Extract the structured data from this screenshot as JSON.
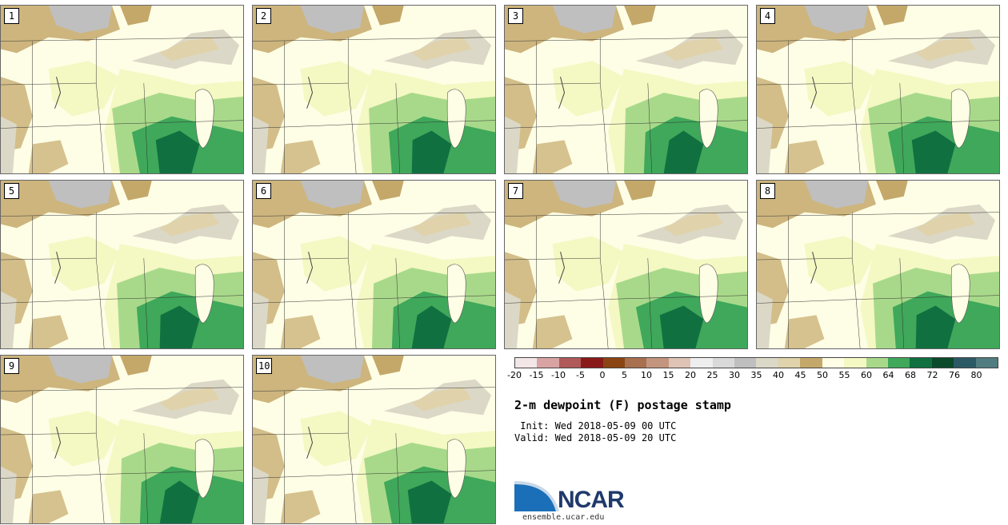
{
  "panels": [
    {
      "label": "1"
    },
    {
      "label": "2"
    },
    {
      "label": "3"
    },
    {
      "label": "4"
    },
    {
      "label": "5"
    },
    {
      "label": "6"
    },
    {
      "label": "7"
    },
    {
      "label": "8"
    },
    {
      "label": "9"
    },
    {
      "label": "10"
    }
  ],
  "colorbar": {
    "colors": [
      "#f2e6e6",
      "#d9a3a3",
      "#b05a5a",
      "#8a1a1a",
      "#8b4513",
      "#a8704f",
      "#c4957e",
      "#dfc3b5",
      "#eeeeee",
      "#d9d9d9",
      "#bfbfbf",
      "#dcd8c7",
      "#e0d2aa",
      "#c4a86a",
      "#fefee6",
      "#f4f8c3",
      "#a8d98a",
      "#3fa85a",
      "#117040",
      "#0b4a2a",
      "#2b5a66",
      "#517c80"
    ],
    "ticks": [
      "-20",
      "-15",
      "-10",
      "-5",
      "0",
      "5",
      "10",
      "15",
      "20",
      "25",
      "30",
      "35",
      "40",
      "45",
      "50",
      "55",
      "60",
      "64",
      "68",
      "72",
      "76",
      "80"
    ]
  },
  "title": "2-m dewpoint (F) postage stamp",
  "init": " Init: Wed 2018-05-09 00 UTC",
  "valid": "Valid: Wed 2018-05-09 20 UTC",
  "logo": {
    "text": "NCAR",
    "url": "ensemble.ucar.edu"
  }
}
